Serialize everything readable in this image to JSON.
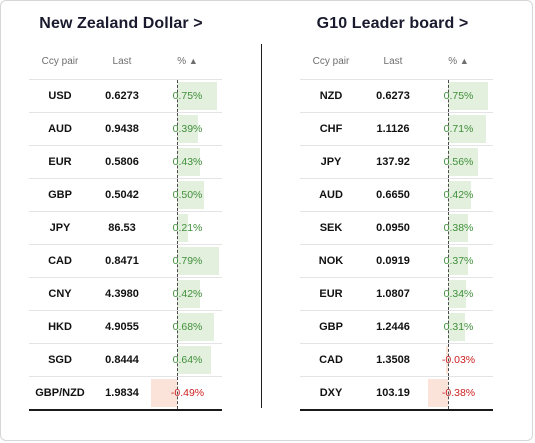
{
  "left": {
    "title": "New Zealand Dollar >",
    "headers": {
      "pair": "Ccy pair",
      "last": "Last",
      "pct": "%",
      "sort_icon": "▲"
    },
    "rows": [
      {
        "pair": "USD",
        "last": "0.6273",
        "pct": "0.75%",
        "value": 0.75
      },
      {
        "pair": "AUD",
        "last": "0.9438",
        "pct": "0.39%",
        "value": 0.39
      },
      {
        "pair": "EUR",
        "last": "0.5806",
        "pct": "0.43%",
        "value": 0.43
      },
      {
        "pair": "GBP",
        "last": "0.5042",
        "pct": "0.50%",
        "value": 0.5
      },
      {
        "pair": "JPY",
        "last": "86.53",
        "pct": "0.21%",
        "value": 0.21
      },
      {
        "pair": "CAD",
        "last": "0.8471",
        "pct": "0.79%",
        "value": 0.79
      },
      {
        "pair": "CNY",
        "last": "4.3980",
        "pct": "0.42%",
        "value": 0.42
      },
      {
        "pair": "HKD",
        "last": "4.9055",
        "pct": "0.68%",
        "value": 0.68
      },
      {
        "pair": "SGD",
        "last": "0.8444",
        "pct": "0.64%",
        "value": 0.64
      },
      {
        "pair": "GBP/NZD",
        "last": "1.9834",
        "pct": "-0.49%",
        "value": -0.49
      }
    ]
  },
  "right": {
    "title": "G10 Leader board >",
    "headers": {
      "pair": "Ccy pair",
      "last": "Last",
      "pct": "%",
      "sort_icon": "▲"
    },
    "rows": [
      {
        "pair": "NZD",
        "last": "0.6273",
        "pct": "0.75%",
        "value": 0.75
      },
      {
        "pair": "CHF",
        "last": "1.1126",
        "pct": "0.71%",
        "value": 0.71
      },
      {
        "pair": "JPY",
        "last": "137.92",
        "pct": "0.56%",
        "value": 0.56
      },
      {
        "pair": "AUD",
        "last": "0.6650",
        "pct": "0.42%",
        "value": 0.42
      },
      {
        "pair": "SEK",
        "last": "0.0950",
        "pct": "0.38%",
        "value": 0.38
      },
      {
        "pair": "NOK",
        "last": "0.0919",
        "pct": "0.37%",
        "value": 0.37
      },
      {
        "pair": "EUR",
        "last": "1.0807",
        "pct": "0.34%",
        "value": 0.34
      },
      {
        "pair": "GBP",
        "last": "1.2446",
        "pct": "0.31%",
        "value": 0.31
      },
      {
        "pair": "CAD",
        "last": "1.3508",
        "pct": "-0.03%",
        "value": -0.03
      },
      {
        "pair": "DXY",
        "last": "103.19",
        "pct": "-0.38%",
        "value": -0.38
      }
    ]
  },
  "colors": {
    "positive_bar": "#e3f0de",
    "negative_bar": "#fbe3da",
    "positive_text": "#3f8f3a",
    "negative_text": "#cc1f1f"
  }
}
